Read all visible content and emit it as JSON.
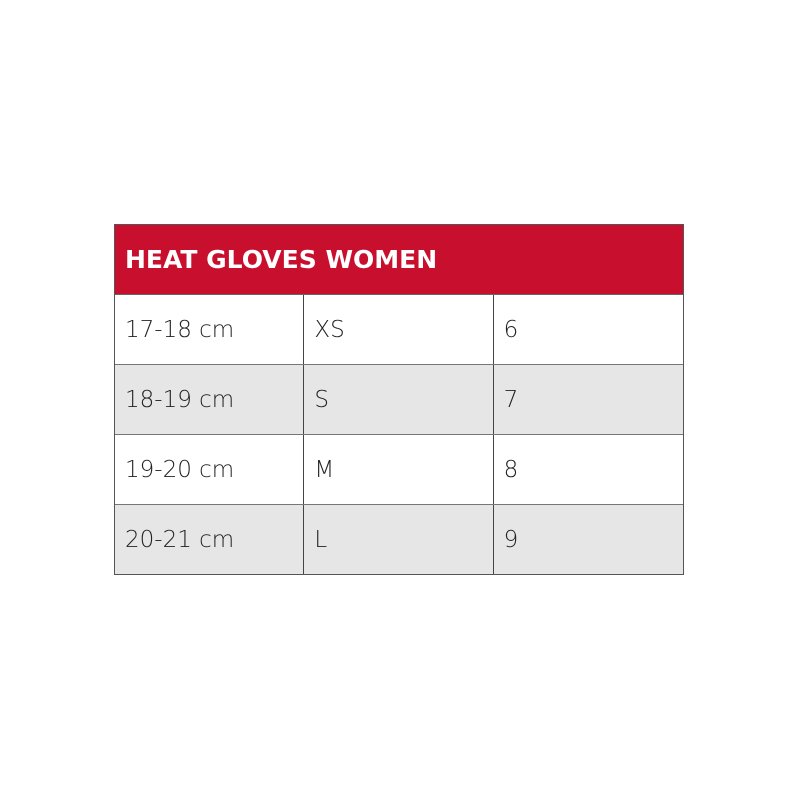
{
  "table": {
    "title": "HEAT GLOVES WOMEN",
    "header_color": "#c8102e",
    "rows": [
      [
        "17-18 cm",
        "XS",
        "6"
      ],
      [
        "18-19 cm",
        "S",
        "7"
      ],
      [
        "19-20 cm",
        "M",
        "8"
      ],
      [
        "20-21 cm",
        "L",
        "9"
      ]
    ]
  }
}
